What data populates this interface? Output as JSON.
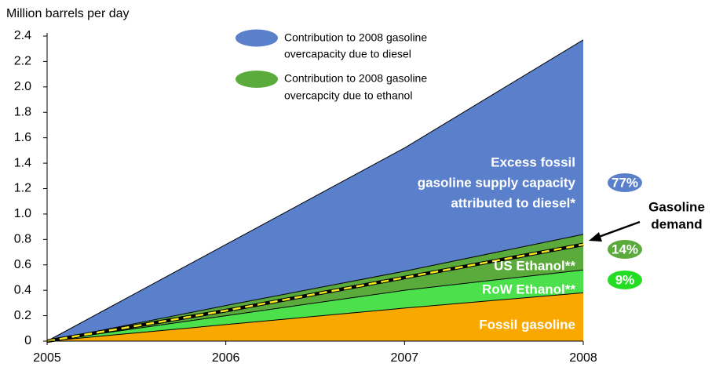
{
  "chart_data": {
    "type": "stacked_area",
    "y_axis_label": "Million barrels per day",
    "x": [
      2005,
      2006,
      2007,
      2008
    ],
    "xlim": [
      2005,
      2008
    ],
    "xticks": [
      2005,
      2006,
      2007,
      2008
    ],
    "ylim": [
      0,
      2.4
    ],
    "yticks": [
      0,
      0.2,
      0.4,
      0.6,
      0.8,
      {
        "value": 1,
        "label": "1.0"
      },
      1.2,
      1.4,
      1.6,
      1.8,
      {
        "value": 2,
        "label": "2.0"
      },
      2.2,
      2.4
    ],
    "series": [
      {
        "name_lines": [
          "Fossil gasoline"
        ],
        "color": "#f9a800",
        "values": [
          0,
          0.13,
          0.26,
          0.38
        ]
      },
      {
        "name_lines": [
          "RoW Ethanol**"
        ],
        "color": "#4ce04c",
        "values": [
          0,
          0.07,
          0.14,
          0.18
        ]
      },
      {
        "name_lines": [
          "US Ethanol**"
        ],
        "color": "#5aaa3c",
        "values": [
          0,
          0.08,
          0.15,
          0.28
        ]
      },
      {
        "name_lines": [
          "Excess fossil",
          "gasoline supply capacity",
          "attributed to diesel*"
        ],
        "color": "#5a80cb",
        "values": [
          0,
          0.48,
          0.97,
          1.53
        ]
      }
    ],
    "demand": {
      "name_lines": [
        "Gasoline",
        "demand"
      ],
      "color": "#f5e61e",
      "values": [
        0,
        0.24,
        0.5,
        0.76
      ]
    },
    "legend": [
      {
        "lines": [
          "Contribution to 2008 gasoline",
          "overcapacity due to diesel"
        ],
        "color": "#5a80cb"
      },
      {
        "lines": [
          "Contribution to 2008 gasoline",
          "overcapcity due to ethanol"
        ],
        "color": "#5aaa3c"
      }
    ],
    "shares": {
      "values": [
        77,
        14,
        9
      ],
      "value_labels": [
        "77%",
        "14%",
        "9%"
      ],
      "colors": [
        "#5a80cb",
        "#5aaa3c",
        "#22dd22"
      ]
    }
  }
}
